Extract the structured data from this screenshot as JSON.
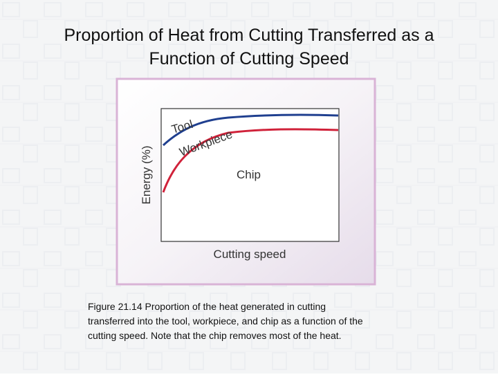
{
  "slide": {
    "title": [
      "Proportion of Heat from Cutting Transferred as a",
      "Function of Cutting Speed"
    ],
    "figure": {
      "y_axis_label": "Energy (%)",
      "x_axis_label": "Cutting speed",
      "regions": [
        "Tool",
        "Workpiece",
        "Chip"
      ]
    },
    "caption": [
      "Figure 21.14  Proportion of the heat generated in cutting",
      "transferred into the tool, workpiece, and chip as a function of the",
      "cutting speed.  Note that the chip removes most of the heat."
    ]
  }
}
